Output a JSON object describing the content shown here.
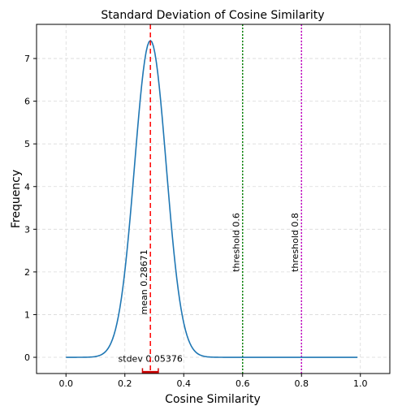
{
  "chart_data": {
    "type": "line",
    "title": "Standard Deviation of Cosine Similarity",
    "xlabel": "Cosine Similarity",
    "ylabel": "Frequency",
    "xlim": [
      -0.1,
      1.1
    ],
    "ylim": [
      -0.38,
      7.8
    ],
    "xticks": [
      "0.0",
      "0.2",
      "0.4",
      "0.6",
      "0.8",
      "1.0"
    ],
    "xtick_values": [
      0.0,
      0.2,
      0.4,
      0.6,
      0.8,
      1.0
    ],
    "yticks": [
      "0",
      "1",
      "2",
      "3",
      "4",
      "5",
      "6",
      "7"
    ],
    "ytick_values": [
      0,
      1,
      2,
      3,
      4,
      5,
      6,
      7
    ],
    "grid": true,
    "series": [
      {
        "color": "#1f77b4",
        "distribution": "normal",
        "mean": 0.28671,
        "stdev": 0.05376,
        "x_range": [
          0.0,
          0.99
        ]
      }
    ],
    "annotations": {
      "mean": {
        "x": 0.28671,
        "label": "mean 0.28671",
        "color": "#ff0000",
        "style": "dashed"
      },
      "stdev": {
        "center": 0.28671,
        "half_width": 0.05376,
        "label": "stdev 0.05376",
        "color": "#cc0000"
      },
      "thresholds": [
        {
          "x": 0.6,
          "label": "threshold 0.6",
          "color": "#008000",
          "style": "dotted"
        },
        {
          "x": 0.8,
          "label": "threshold 0.8",
          "color": "#c000c0",
          "style": "dotted"
        }
      ]
    }
  }
}
